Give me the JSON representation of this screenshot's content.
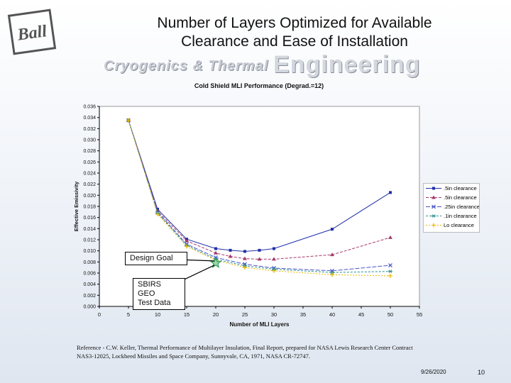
{
  "slide": {
    "title_line1": "Number of Layers Optimized for Available",
    "title_line2": "Clearance and Ease of Installation",
    "logo_text": "Ball",
    "banner_small": "Cryogenics & Thermal",
    "banner_big": "Engineering",
    "reference_line1": "Reference - C.W. Keller, Thermal Performance of Multilayer Insulation, Final Report, prepared for NASA Lewis Research Center Contract",
    "reference_line2": "NAS3-12025, Lockheed Missiles and Space Company, Sunnyvale, CA, 1971, NASA CR-72747.",
    "date": "9/26/2020",
    "page_number": "10"
  },
  "callouts": {
    "design_goal": "Design Goal",
    "sbirs_line1": "SBIRS GEO",
    "sbirs_line2": "Test Data"
  },
  "colors": {
    "s1": "#1f2fa8",
    "s2": "#a63a6a",
    "s3": "#4a55c8",
    "s4": "#2f8f8f",
    "s5": "#e6b800",
    "star": "#2e9b57"
  },
  "chart_data": {
    "type": "line",
    "title": "Cold Shield MLI Performance (Degrad.=12)",
    "xlabel": "Number of MLI Layers",
    "ylabel": "Effective Emissivity",
    "xlim": [
      0,
      55
    ],
    "ylim": [
      0,
      0.036
    ],
    "x_ticks": [
      "0",
      "5",
      "10",
      "15",
      "20",
      "25",
      "30",
      "35",
      "40",
      "45",
      "50",
      "55"
    ],
    "y_ticks": [
      "0.000",
      "0.002",
      "0.004",
      "0.006",
      "0.008",
      "0.010",
      "0.012",
      "0.014",
      "0.016",
      "0.018",
      "0.020",
      "0.022",
      "0.024",
      "0.026",
      "0.028",
      "0.030",
      "0.032",
      "0.034",
      "0.036"
    ],
    "grid": false,
    "legend_position": "right",
    "series": [
      {
        "name": ".5in clearance",
        "marker": "square",
        "x": [
          5,
          10,
          15,
          20,
          22.5,
          25,
          27.5,
          30,
          40,
          50
        ],
        "y": [
          0.0335,
          0.0175,
          0.0121,
          0.0104,
          0.0101,
          0.0099,
          0.0101,
          0.0104,
          0.0139,
          0.0205
        ]
      },
      {
        "name": ".5in clearance",
        "marker": "triangle",
        "x": [
          5,
          10,
          15,
          20,
          22.5,
          25,
          27.5,
          30,
          40,
          50
        ],
        "y": [
          0.0335,
          0.0172,
          0.0118,
          0.0096,
          0.009,
          0.0086,
          0.0085,
          0.0085,
          0.0093,
          0.0124
        ]
      },
      {
        "name": ".25in clearance",
        "marker": "x",
        "x": [
          5,
          10,
          15,
          20,
          25,
          30,
          40,
          50
        ],
        "y": [
          0.0335,
          0.017,
          0.0112,
          0.0088,
          0.0076,
          0.0069,
          0.0064,
          0.0074
        ]
      },
      {
        "name": ".1in clearance",
        "marker": "star",
        "x": [
          5,
          10,
          15,
          20,
          25,
          30,
          40,
          50
        ],
        "y": [
          0.0335,
          0.0168,
          0.011,
          0.0085,
          0.0073,
          0.0067,
          0.0061,
          0.0063
        ]
      },
      {
        "name": "Lo clearance",
        "marker": "plus",
        "x": [
          5,
          10,
          15,
          20,
          25,
          30,
          40,
          50
        ],
        "y": [
          0.0335,
          0.0166,
          0.0108,
          0.0083,
          0.007,
          0.0064,
          0.0057,
          0.0055
        ]
      }
    ],
    "highlight_point": {
      "x": 20,
      "y": 0.0078
    }
  }
}
